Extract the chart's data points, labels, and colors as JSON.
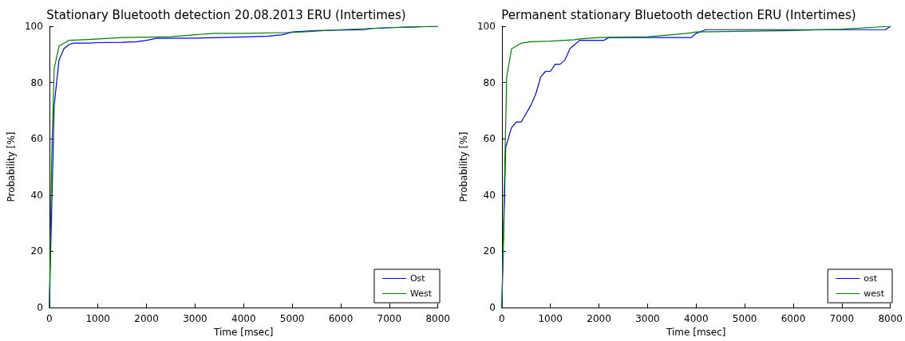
{
  "chart_data": [
    {
      "type": "line",
      "title": "Stationary Bluetooth detection 20.08.2013 ERU (Intertimes)",
      "xlabel": "Time [msec]",
      "ylabel": "Probability [%]",
      "xlim": [
        0,
        8000
      ],
      "xticks": [
        0,
        1000,
        2000,
        3000,
        4000,
        5000,
        6000,
        7000,
        8000
      ],
      "ylim": [
        0,
        100
      ],
      "yticks": [
        0,
        20,
        40,
        60,
        80,
        100
      ],
      "grid": false,
      "legend": "bottom right",
      "marker": "none",
      "line_style": "solid",
      "series": [
        {
          "name": "Ost",
          "color": "#0000ff",
          "x": [
            0,
            100,
            200,
            300,
            400,
            500,
            800,
            1000,
            1500,
            1800,
            2000,
            2200,
            3000,
            3500,
            4000,
            4500,
            4800,
            5000,
            5500,
            6500,
            6600,
            7000,
            8000
          ],
          "values": [
            0,
            72,
            88,
            92,
            93.5,
            94,
            94,
            94.2,
            94.3,
            94.5,
            95,
            95.7,
            95.8,
            96,
            96.2,
            96.5,
            97,
            98,
            98.5,
            98.8,
            99.2,
            99.5,
            100
          ]
        },
        {
          "name": "West",
          "color": "#008000",
          "x": [
            0,
            50,
            100,
            200,
            400,
            800,
            1500,
            2500,
            3000,
            3400,
            4000,
            5000,
            5200,
            6000,
            7000,
            8000
          ],
          "values": [
            0,
            55,
            85,
            93,
            95,
            95.3,
            96,
            96.3,
            97,
            97.5,
            97.5,
            97.8,
            98,
            98.8,
            99.5,
            100
          ]
        }
      ]
    },
    {
      "type": "line",
      "title": "Permanent stationary Bluetooth detection ERU (Intertimes)",
      "xlabel": "Time [msec]",
      "ylabel": "Probability [%]",
      "xlim": [
        0,
        8000
      ],
      "xticks": [
        0,
        1000,
        2000,
        3000,
        4000,
        5000,
        6000,
        7000,
        8000
      ],
      "ylim": [
        0,
        100
      ],
      "yticks": [
        0,
        20,
        40,
        60,
        80,
        100
      ],
      "grid": false,
      "legend": "bottom right",
      "marker": "none",
      "line_style": "solid",
      "series": [
        {
          "name": "ost",
          "color": "#0000ff",
          "x": [
            0,
            80,
            200,
            300,
            400,
            500,
            600,
            700,
            800,
            900,
            1000,
            1100,
            1200,
            1300,
            1400,
            1600,
            2100,
            2200,
            3900,
            4000,
            4200,
            7900,
            8000
          ],
          "values": [
            0,
            57,
            64,
            66,
            66,
            69,
            72,
            76,
            82,
            84,
            84,
            86.5,
            86.5,
            88,
            92,
            95,
            95,
            96,
            96,
            97.5,
            98.8,
            98.8,
            100
          ]
        },
        {
          "name": "west",
          "color": "#008000",
          "x": [
            0,
            60,
            100,
            200,
            400,
            600,
            1000,
            1500,
            1600,
            2000,
            3000,
            3500,
            3800,
            4000,
            6000,
            7000,
            8000
          ],
          "values": [
            0,
            50,
            82,
            92,
            94,
            94.5,
            94.7,
            95.2,
            95.5,
            96,
            96.3,
            97,
            97.5,
            98,
            98.5,
            99,
            100
          ]
        }
      ]
    }
  ]
}
